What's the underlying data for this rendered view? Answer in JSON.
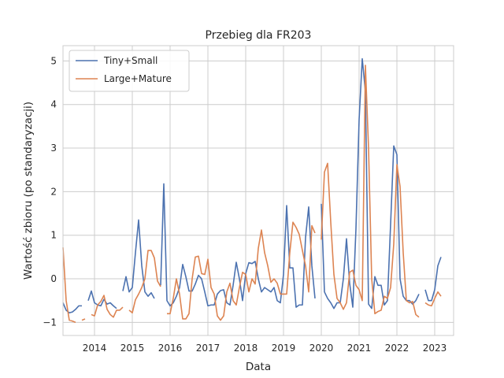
{
  "chart_data": {
    "type": "line",
    "title": "Przebieg dla FR203",
    "xlabel": "Data",
    "ylabel": "Wartość zbioru (po standaryzacji)",
    "xlim": [
      "2013-03",
      "2023-07"
    ],
    "ylim": [
      -1.3,
      5.35
    ],
    "x_ticks": [
      "2014",
      "2015",
      "2016",
      "2017",
      "2018",
      "2019",
      "2020",
      "2021",
      "2022",
      "2023"
    ],
    "y_ticks": [
      -1,
      0,
      1,
      2,
      3,
      4,
      5
    ],
    "grid": true,
    "legend": "top-left",
    "series": [
      {
        "name": "Tiny+Small",
        "color": "#4c72b0",
        "points": [
          [
            "2013-03",
            -0.55
          ],
          [
            "2013-04",
            -0.72
          ],
          [
            "2013-05",
            -0.78
          ],
          [
            "2013-06",
            -0.76
          ],
          [
            "2013-07",
            -0.7
          ],
          [
            "2013-08",
            -0.62
          ],
          [
            "2013-09",
            -0.62
          ],
          [
            "2013-10",
            null
          ],
          [
            "2013-11",
            -0.5
          ],
          [
            "2013-12",
            -0.28
          ],
          [
            "2014-01",
            -0.55
          ],
          [
            "2014-02",
            -0.6
          ],
          [
            "2014-03",
            -0.62
          ],
          [
            "2014-04",
            -0.47
          ],
          [
            "2014-05",
            -0.58
          ],
          [
            "2014-06",
            -0.55
          ],
          [
            "2014-07",
            -0.62
          ],
          [
            "2014-08",
            -0.68
          ],
          [
            "2014-09",
            null
          ],
          [
            "2014-10",
            -0.28
          ],
          [
            "2014-11",
            0.05
          ],
          [
            "2014-12",
            -0.3
          ],
          [
            "2015-01",
            -0.2
          ],
          [
            "2015-02",
            0.6
          ],
          [
            "2015-03",
            1.35
          ],
          [
            "2015-04",
            0.3
          ],
          [
            "2015-05",
            -0.3
          ],
          [
            "2015-06",
            -0.4
          ],
          [
            "2015-07",
            -0.32
          ],
          [
            "2015-08",
            -0.45
          ],
          [
            "2015-09",
            null
          ],
          [
            "2015-10",
            -0.15
          ],
          [
            "2015-11",
            2.18
          ],
          [
            "2015-12",
            -0.5
          ],
          [
            "2016-01",
            -0.62
          ],
          [
            "2016-02",
            -0.55
          ],
          [
            "2016-03",
            -0.4
          ],
          [
            "2016-04",
            -0.2
          ],
          [
            "2016-05",
            0.33
          ],
          [
            "2016-06",
            0.05
          ],
          [
            "2016-07",
            -0.28
          ],
          [
            "2016-08",
            -0.28
          ],
          [
            "2016-09",
            -0.12
          ],
          [
            "2016-10",
            0.08
          ],
          [
            "2016-11",
            0.0
          ],
          [
            "2016-12",
            -0.3
          ],
          [
            "2017-01",
            -0.62
          ],
          [
            "2017-02",
            -0.6
          ],
          [
            "2017-03",
            -0.6
          ],
          [
            "2017-04",
            -0.35
          ],
          [
            "2017-05",
            -0.27
          ],
          [
            "2017-06",
            -0.25
          ],
          [
            "2017-07",
            -0.55
          ],
          [
            "2017-08",
            -0.6
          ],
          [
            "2017-09",
            -0.15
          ],
          [
            "2017-10",
            0.38
          ],
          [
            "2017-11",
            0.0
          ],
          [
            "2017-12",
            -0.5
          ],
          [
            "2018-01",
            0.12
          ],
          [
            "2018-02",
            0.37
          ],
          [
            "2018-03",
            0.35
          ],
          [
            "2018-04",
            0.4
          ],
          [
            "2018-05",
            0.0
          ],
          [
            "2018-06",
            -0.3
          ],
          [
            "2018-07",
            -0.2
          ],
          [
            "2018-08",
            -0.25
          ],
          [
            "2018-09",
            -0.3
          ],
          [
            "2018-10",
            -0.2
          ],
          [
            "2018-11",
            -0.5
          ],
          [
            "2018-12",
            -0.55
          ],
          [
            "2019-01",
            0.1
          ],
          [
            "2019-02",
            1.68
          ],
          [
            "2019-03",
            0.25
          ],
          [
            "2019-04",
            0.25
          ],
          [
            "2019-05",
            -0.65
          ],
          [
            "2019-06",
            -0.6
          ],
          [
            "2019-07",
            -0.6
          ],
          [
            "2019-08",
            0.95
          ],
          [
            "2019-09",
            1.65
          ],
          [
            "2019-10",
            0.3
          ],
          [
            "2019-11",
            -0.45
          ],
          [
            "2019-12",
            null
          ],
          [
            "2020-01",
            1.72
          ],
          [
            "2020-02",
            -0.3
          ],
          [
            "2020-03",
            -0.45
          ],
          [
            "2020-04",
            -0.55
          ],
          [
            "2020-05",
            -0.68
          ],
          [
            "2020-06",
            -0.55
          ],
          [
            "2020-07",
            -0.55
          ],
          [
            "2020-08",
            0.0
          ],
          [
            "2020-09",
            0.92
          ],
          [
            "2020-10",
            -0.1
          ],
          [
            "2020-11",
            -0.65
          ],
          [
            "2020-12",
            1.15
          ],
          [
            "2021-01",
            3.65
          ],
          [
            "2021-02",
            5.05
          ],
          [
            "2021-03",
            4.3
          ],
          [
            "2021-04",
            -0.58
          ],
          [
            "2021-05",
            -0.68
          ],
          [
            "2021-06",
            0.05
          ],
          [
            "2021-07",
            -0.15
          ],
          [
            "2021-08",
            -0.15
          ],
          [
            "2021-09",
            -0.6
          ],
          [
            "2021-10",
            -0.5
          ],
          [
            "2021-11",
            1.25
          ],
          [
            "2021-12",
            3.05
          ],
          [
            "2022-01",
            2.85
          ],
          [
            "2022-02",
            0.0
          ],
          [
            "2022-03",
            -0.4
          ],
          [
            "2022-04",
            -0.5
          ],
          [
            "2022-05",
            -0.5
          ],
          [
            "2022-06",
            -0.58
          ],
          [
            "2022-07",
            -0.5
          ],
          [
            "2022-08",
            -0.35
          ],
          [
            "2022-09",
            null
          ],
          [
            "2022-10",
            -0.25
          ],
          [
            "2022-11",
            -0.5
          ],
          [
            "2022-12",
            -0.5
          ],
          [
            "2023-01",
            -0.25
          ],
          [
            "2023-02",
            0.3
          ],
          [
            "2023-03",
            0.5
          ]
        ]
      },
      {
        "name": "Large+Mature",
        "color": "#dd8452",
        "points": [
          [
            "2013-03",
            0.72
          ],
          [
            "2013-04",
            -0.5
          ],
          [
            "2013-05",
            -0.95
          ],
          [
            "2013-06",
            -0.97
          ],
          [
            "2013-07",
            -1.0
          ],
          [
            "2013-08",
            null
          ],
          [
            "2013-09",
            -0.95
          ],
          [
            "2013-10",
            -0.92
          ],
          [
            "2013-11",
            null
          ],
          [
            "2013-12",
            -0.82
          ],
          [
            "2014-01",
            -0.85
          ],
          [
            "2014-02",
            -0.6
          ],
          [
            "2014-03",
            -0.52
          ],
          [
            "2014-04",
            -0.38
          ],
          [
            "2014-05",
            -0.7
          ],
          [
            "2014-06",
            -0.82
          ],
          [
            "2014-07",
            -0.88
          ],
          [
            "2014-08",
            -0.72
          ],
          [
            "2014-09",
            -0.72
          ],
          [
            "2014-10",
            -0.65
          ],
          [
            "2014-11",
            null
          ],
          [
            "2014-12",
            -0.72
          ],
          [
            "2015-01",
            -0.78
          ],
          [
            "2015-02",
            -0.48
          ],
          [
            "2015-03",
            -0.35
          ],
          [
            "2015-04",
            -0.2
          ],
          [
            "2015-05",
            0.0
          ],
          [
            "2015-06",
            0.65
          ],
          [
            "2015-07",
            0.65
          ],
          [
            "2015-08",
            0.48
          ],
          [
            "2015-09",
            -0.05
          ],
          [
            "2015-10",
            -0.18
          ],
          [
            "2015-11",
            null
          ],
          [
            "2015-12",
            -0.8
          ],
          [
            "2016-01",
            -0.8
          ],
          [
            "2016-02",
            -0.45
          ],
          [
            "2016-03",
            0.0
          ],
          [
            "2016-04",
            -0.35
          ],
          [
            "2016-05",
            -0.92
          ],
          [
            "2016-06",
            -0.92
          ],
          [
            "2016-07",
            -0.8
          ],
          [
            "2016-08",
            0.0
          ],
          [
            "2016-09",
            0.5
          ],
          [
            "2016-10",
            0.52
          ],
          [
            "2016-11",
            0.12
          ],
          [
            "2016-12",
            0.1
          ],
          [
            "2017-01",
            0.45
          ],
          [
            "2017-02",
            -0.2
          ],
          [
            "2017-03",
            -0.35
          ],
          [
            "2017-04",
            -0.85
          ],
          [
            "2017-05",
            -0.95
          ],
          [
            "2017-06",
            -0.85
          ],
          [
            "2017-07",
            -0.3
          ],
          [
            "2017-08",
            -0.1
          ],
          [
            "2017-09",
            -0.5
          ],
          [
            "2017-10",
            -0.6
          ],
          [
            "2017-11",
            -0.2
          ],
          [
            "2017-12",
            0.15
          ],
          [
            "2018-01",
            0.1
          ],
          [
            "2018-02",
            -0.3
          ],
          [
            "2018-03",
            0.0
          ],
          [
            "2018-04",
            -0.12
          ],
          [
            "2018-05",
            0.7
          ],
          [
            "2018-06",
            1.12
          ],
          [
            "2018-07",
            0.6
          ],
          [
            "2018-08",
            0.3
          ],
          [
            "2018-09",
            -0.08
          ],
          [
            "2018-10",
            0.0
          ],
          [
            "2018-11",
            -0.1
          ],
          [
            "2018-12",
            -0.35
          ],
          [
            "2019-01",
            -0.35
          ],
          [
            "2019-02",
            -0.35
          ],
          [
            "2019-03",
            0.6
          ],
          [
            "2019-04",
            1.3
          ],
          [
            "2019-05",
            1.18
          ],
          [
            "2019-06",
            1.02
          ],
          [
            "2019-07",
            0.65
          ],
          [
            "2019-08",
            0.3
          ],
          [
            "2019-09",
            -0.3
          ],
          [
            "2019-10",
            1.22
          ],
          [
            "2019-11",
            1.05
          ],
          [
            "2019-12",
            null
          ],
          [
            "2020-01",
            0.9
          ],
          [
            "2020-02",
            2.45
          ],
          [
            "2020-03",
            2.65
          ],
          [
            "2020-04",
            1.3
          ],
          [
            "2020-05",
            0.1
          ],
          [
            "2020-06",
            -0.45
          ],
          [
            "2020-07",
            -0.55
          ],
          [
            "2020-08",
            -0.7
          ],
          [
            "2020-09",
            -0.55
          ],
          [
            "2020-10",
            0.15
          ],
          [
            "2020-11",
            0.2
          ],
          [
            "2020-12",
            -0.15
          ],
          [
            "2021-01",
            -0.25
          ],
          [
            "2021-02",
            -0.5
          ],
          [
            "2021-03",
            4.9
          ],
          [
            "2021-04",
            3.0
          ],
          [
            "2021-05",
            0.0
          ],
          [
            "2021-06",
            -0.8
          ],
          [
            "2021-07",
            -0.75
          ],
          [
            "2021-08",
            -0.72
          ],
          [
            "2021-09",
            -0.4
          ],
          [
            "2021-10",
            -0.45
          ],
          [
            "2021-11",
            -0.2
          ],
          [
            "2021-12",
            0.8
          ],
          [
            "2022-01",
            2.62
          ],
          [
            "2022-02",
            2.12
          ],
          [
            "2022-03",
            0.6
          ],
          [
            "2022-04",
            -0.5
          ],
          [
            "2022-05",
            -0.55
          ],
          [
            "2022-06",
            -0.52
          ],
          [
            "2022-07",
            -0.82
          ],
          [
            "2022-08",
            -0.88
          ],
          [
            "2022-09",
            null
          ],
          [
            "2022-10",
            -0.55
          ],
          [
            "2022-11",
            -0.6
          ],
          [
            "2022-12",
            -0.62
          ],
          [
            "2023-01",
            -0.45
          ],
          [
            "2023-02",
            -0.3
          ],
          [
            "2023-03",
            -0.4
          ]
        ]
      }
    ]
  }
}
